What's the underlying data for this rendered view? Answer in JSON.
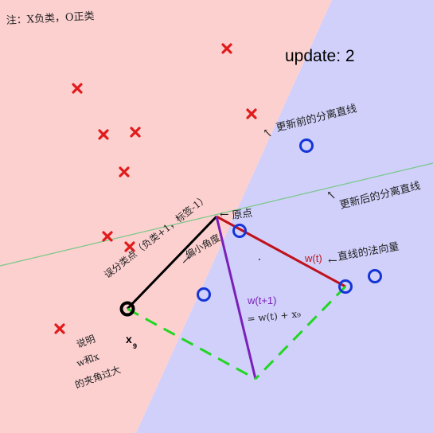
{
  "title": "update: 2",
  "note_top_left": "注：X负类，O正类",
  "annotations": {
    "before_update": "更新前的分离直线",
    "after_update": "更新后的分离直线",
    "origin": "原点",
    "misclassified": "误分类点（负类+1，标签-1）",
    "too_small_angle": "偏小角度",
    "explain_line1": "说明",
    "explain_line2": "w和x",
    "explain_line3": "的夹角过大",
    "normal_vector": "直线的法向量"
  },
  "labels": {
    "w_t": "w(t)",
    "w_t1": "w(t+1)",
    "w_t1_formula": "= w(t) + x₉",
    "x9_main": "x",
    "x9_sub": "9"
  },
  "colors": {
    "negative_region": "#fdd0d0",
    "positive_region": "#d0d0fb",
    "negative_point": "#e11b1b",
    "positive_point": "#1434d6",
    "w_t": "#c0121c",
    "w_t1": "#7a1fb8",
    "x9_vector": "#000000",
    "dashed": "#22d622",
    "new_line": "#77c887"
  }
}
